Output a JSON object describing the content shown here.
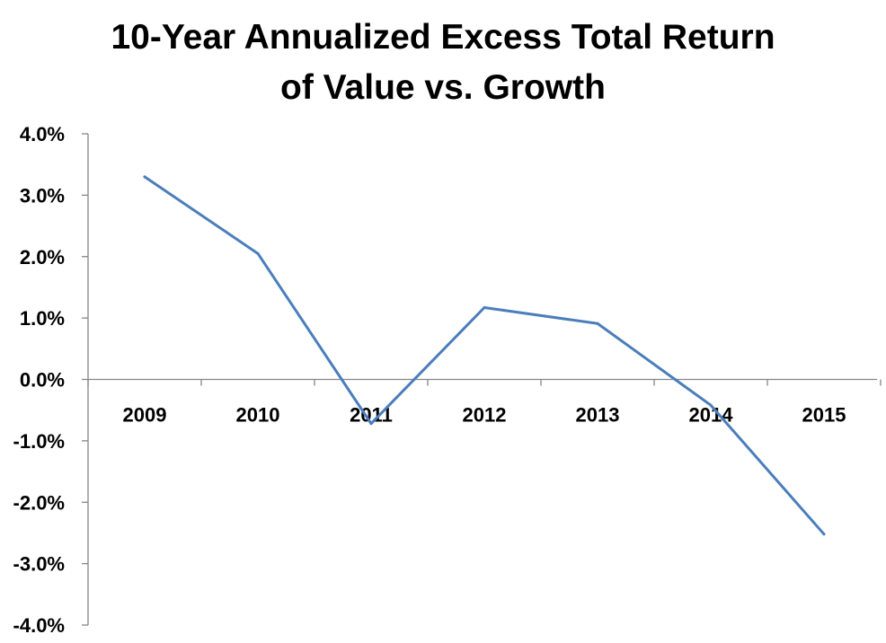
{
  "chart_data": {
    "type": "line",
    "title_lines": [
      "10-Year Annualized Excess Total Return",
      "of Value vs. Growth"
    ],
    "categories": [
      "2009",
      "2010",
      "2011",
      "2012",
      "2013",
      "2014",
      "2015"
    ],
    "series": [
      {
        "values": [
          3.3,
          2.05,
          -0.72,
          1.17,
          0.91,
          -0.42,
          -2.52
        ],
        "color": "#4a7ebb"
      }
    ],
    "ylim": [
      -4.0,
      4.0
    ],
    "y_ticks": [
      4.0,
      3.0,
      2.0,
      1.0,
      0.0,
      -1.0,
      -2.0,
      -3.0,
      -4.0
    ],
    "y_tick_labels": [
      "4.0%",
      "3.0%",
      "2.0%",
      "1.0%",
      "0.0%",
      "-1.0%",
      "-2.0%",
      "-3.0%",
      "-4.0%"
    ],
    "xlabel": "",
    "ylabel": "",
    "grid": false,
    "legend": "none",
    "axis_color": "#868686"
  }
}
